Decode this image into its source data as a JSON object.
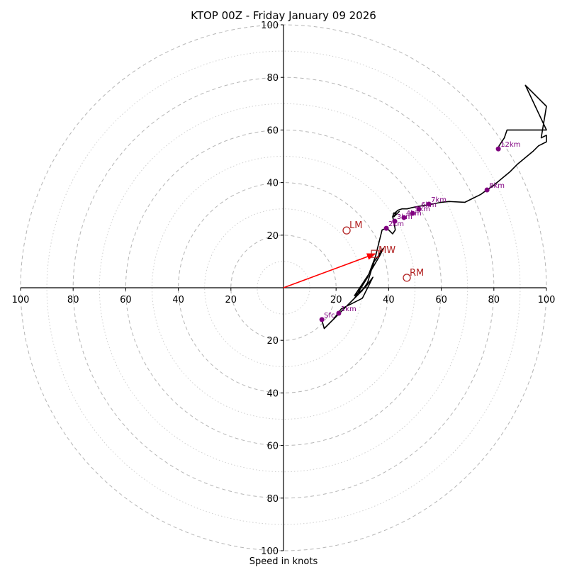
{
  "chart_data": {
    "type": "line",
    "subtype": "hodograph",
    "title": "KTOP 00Z - Friday January 09 2026",
    "xlabel": "Speed in knots",
    "ylabel": "",
    "xlim": [
      -100,
      100
    ],
    "ylim": [
      -100,
      100
    ],
    "grid": true,
    "ring_major": [
      20,
      40,
      60,
      80,
      100
    ],
    "ring_minor": [
      10,
      30,
      50,
      70,
      90
    ],
    "x_tick_labels": [
      "100",
      "80",
      "60",
      "40",
      "20",
      "20",
      "40",
      "60",
      "80",
      "100"
    ],
    "x_tick_values": [
      -100,
      -80,
      -60,
      -40,
      -20,
      20,
      40,
      60,
      80,
      100
    ],
    "y_tick_labels": [
      "100",
      "80",
      "60",
      "40",
      "20",
      "20",
      "40",
      "60",
      "80",
      "100"
    ],
    "y_tick_values": [
      100,
      80,
      60,
      40,
      20,
      -20,
      -40,
      -60,
      -80,
      -100
    ],
    "hodograph_trace": {
      "color": "#000000",
      "u": [
        14.5,
        15.5,
        21.0,
        27,
        30,
        32,
        33.5,
        34.5,
        36,
        37,
        38,
        36.5,
        33,
        29,
        27,
        31,
        34,
        32,
        30,
        26,
        22,
        19,
        21,
        27,
        32,
        35,
        36.5,
        37.5,
        39,
        40,
        41.5,
        42.5,
        42,
        41.5,
        42,
        41.5,
        43,
        42.5,
        44,
        42,
        43,
        41.8,
        42.5,
        43.5,
        45,
        47,
        49,
        51.5,
        55,
        60,
        63,
        69,
        72,
        75,
        77.5,
        80,
        83,
        86,
        89,
        92,
        95,
        97,
        100,
        100,
        98,
        100,
        92,
        100,
        85,
        84,
        82,
        81.7
      ],
      "v": [
        -12.0,
        -15.5,
        -10.0,
        -4,
        -1,
        2,
        7,
        10,
        12,
        14,
        15,
        12,
        6,
        0,
        -3,
        0,
        4,
        0,
        -4,
        -6,
        -8,
        -12,
        -10,
        -4,
        4,
        12,
        18,
        22,
        22.5,
        22,
        20.5,
        22,
        25,
        27,
        28.5,
        27,
        28,
        27.5,
        29,
        27,
        29,
        28,
        28.5,
        29.5,
        30,
        30,
        30.5,
        31,
        31.5,
        32.5,
        32.8,
        32.5,
        34,
        35.5,
        37.3,
        39,
        41.5,
        44,
        47,
        49.5,
        52,
        54,
        55.5,
        58,
        57,
        69,
        77,
        60,
        60,
        57,
        54,
        53
      ]
    },
    "height_markers": [
      {
        "label": "Sfc",
        "u": 14.6,
        "v": -12.1
      },
      {
        "label": "1km",
        "u": 21.0,
        "v": -9.7
      },
      {
        "label": "2km",
        "u": 39.1,
        "v": 22.6
      },
      {
        "label": "3km",
        "u": 42.3,
        "v": 25.3
      },
      {
        "label": "4km",
        "u": 45.8,
        "v": 26.7
      },
      {
        "label": "5km",
        "u": 49.1,
        "v": 28.3
      },
      {
        "label": "6km",
        "u": 51.5,
        "v": 29.9
      },
      {
        "label": "7km",
        "u": 55.3,
        "v": 31.8
      },
      {
        "label": "8km",
        "u": 77.4,
        "v": 37.2
      },
      {
        "label": "12km",
        "u": 81.7,
        "v": 52.8
      }
    ],
    "marker_color": "#800080",
    "storm_motion": {
      "color": "#b22222",
      "mean_wind": {
        "label": "MW",
        "u": 34.8,
        "v": 12.9,
        "marker": "square"
      },
      "left_mover": {
        "label": "LM",
        "u": 24.0,
        "v": 21.8,
        "marker": "circle"
      },
      "right_mover": {
        "label": "RM",
        "u": 46.9,
        "v": 3.8,
        "marker": "circle"
      },
      "arrow": {
        "from": [
          0,
          0
        ],
        "to": [
          34.8,
          12.9
        ],
        "color": "#ff0000"
      }
    }
  }
}
